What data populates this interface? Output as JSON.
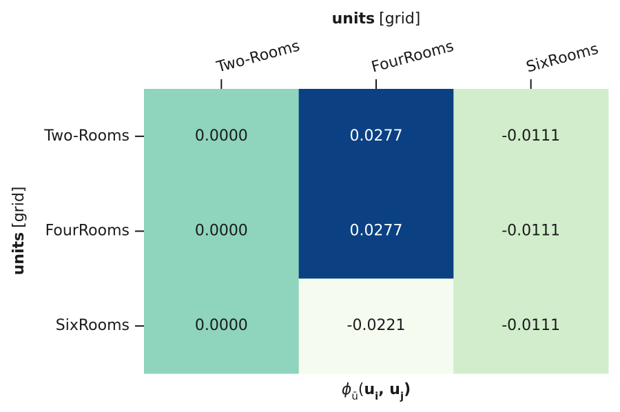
{
  "chart_data": {
    "type": "heatmap",
    "x_label": {
      "name": "units",
      "unit": "[grid]"
    },
    "y_label": {
      "name": "units",
      "unit": "[grid]"
    },
    "bottom_label": [
      "ϕ",
      "ū",
      "(",
      "u",
      "i",
      ", ",
      "u",
      "j",
      ")"
    ],
    "x_categories": [
      "Two-Rooms",
      "FourRooms",
      "SixRooms"
    ],
    "y_categories": [
      "Two-Rooms",
      "FourRooms",
      "SixRooms"
    ],
    "values": [
      [
        0.0,
        0.0277,
        -0.0111
      ],
      [
        0.0,
        0.0277,
        -0.0111
      ],
      [
        0.0,
        -0.0221,
        -0.0111
      ]
    ],
    "value_labels": [
      [
        "0.0000",
        "0.0277",
        "-0.0111"
      ],
      [
        "0.0000",
        "0.0277",
        "-0.0111"
      ],
      [
        "0.0000",
        "-0.0221",
        "-0.0111"
      ]
    ],
    "colors": [
      [
        "#8fd4bd",
        "#0b4083",
        "#d1edcb"
      ],
      [
        "#8fd4bd",
        "#0b4083",
        "#d1edcb"
      ],
      [
        "#8fd4bd",
        "#f5fbef",
        "#d1edcb"
      ]
    ],
    "label_colors": [
      [
        "#1a1a1a",
        "#ffffff",
        "#1a1a1a"
      ],
      [
        "#1a1a1a",
        "#ffffff",
        "#1a1a1a"
      ],
      [
        "#1a1a1a",
        "#1a1a1a",
        "#1a1a1a"
      ]
    ]
  }
}
